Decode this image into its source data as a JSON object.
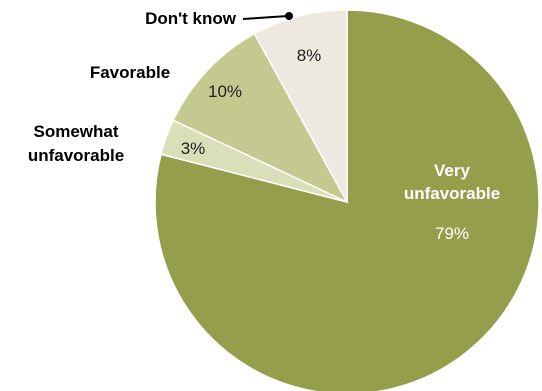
{
  "chart_data": {
    "type": "pie",
    "slices": [
      {
        "label": [
          "Very",
          "unfavorable"
        ],
        "value": 79,
        "value_label": "79%",
        "color": "#949e4b"
      },
      {
        "label": [
          "Somewhat",
          "unfavorable"
        ],
        "value": 3,
        "value_label": "3%",
        "color": "#d9dfb8"
      },
      {
        "label": [
          "Favorable"
        ],
        "value": 10,
        "value_label": "10%",
        "color": "#c4c98f"
      },
      {
        "label": [
          "Don't know"
        ],
        "value": 8,
        "value_label": "8%",
        "color": "#ede9e1"
      }
    ],
    "start": "12 o'clock",
    "direction": "clockwise"
  }
}
